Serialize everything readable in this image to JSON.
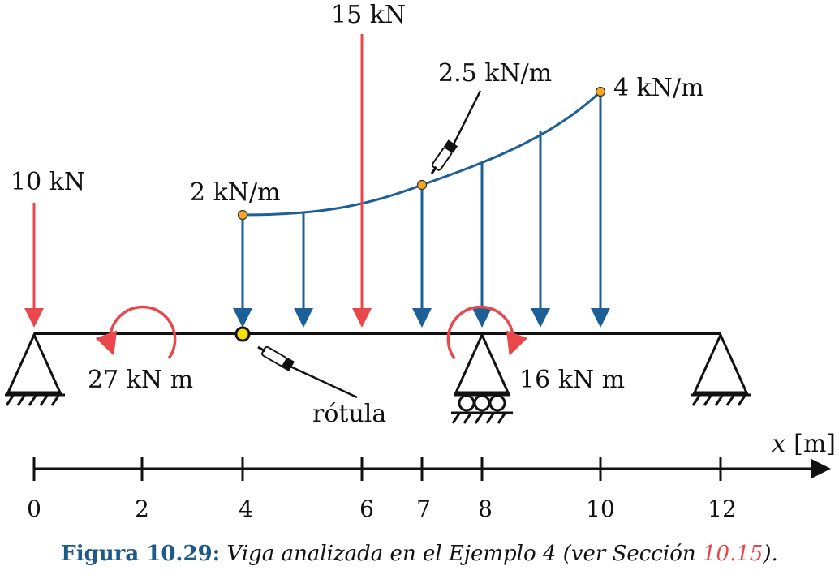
{
  "loads": {
    "point_left": "10 kN",
    "point_center": "15 kN",
    "moment_left": "27 kN m",
    "moment_right": "16 kN m",
    "dist_start": "2 kN/m",
    "dist_mid": "2.5 kN/m",
    "dist_end": "4 kN/m"
  },
  "hinge_label": "rótula",
  "axis": {
    "variable": "x",
    "unit": "[m]",
    "ticks": [
      "0",
      "2",
      "4",
      "6",
      "7",
      "8",
      "10",
      "12"
    ]
  },
  "caption": {
    "label": "Figura 10.29:",
    "text": "Viga analizada en el Ejemplo 4 (ver Sección ",
    "ref": "10.15",
    "end": ")."
  },
  "colors": {
    "point_load": "#e8474c",
    "distributed": "#1d5f97",
    "marker": "#f5a623",
    "hinge": "#f5e200"
  }
}
